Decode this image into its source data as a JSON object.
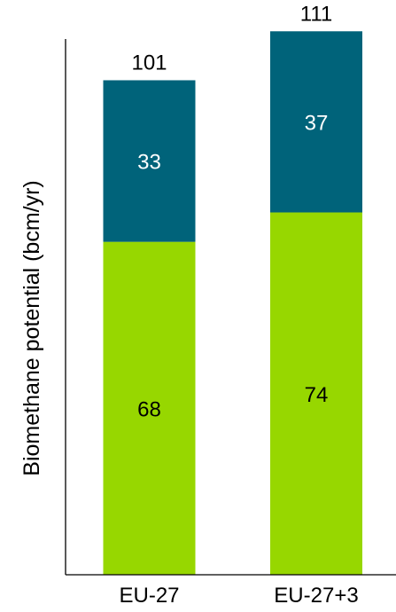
{
  "chart_data": {
    "type": "bar",
    "stacked": true,
    "title": "",
    "xlabel": "",
    "ylabel": "Biomethane potential (bcm/yr)",
    "ylim": [
      0,
      115
    ],
    "grid": false,
    "legend": null,
    "categories": [
      "EU-27",
      "EU-27+3"
    ],
    "totals": [
      101,
      111
    ],
    "series": [
      {
        "values": [
          68,
          74
        ],
        "color": "#97d700"
      },
      {
        "values": [
          33,
          37
        ],
        "color": "#00637a"
      }
    ],
    "colors": {
      "axis": "#000000",
      "label_on_dark": "#ffffff",
      "label_on_light": "#000000"
    }
  }
}
